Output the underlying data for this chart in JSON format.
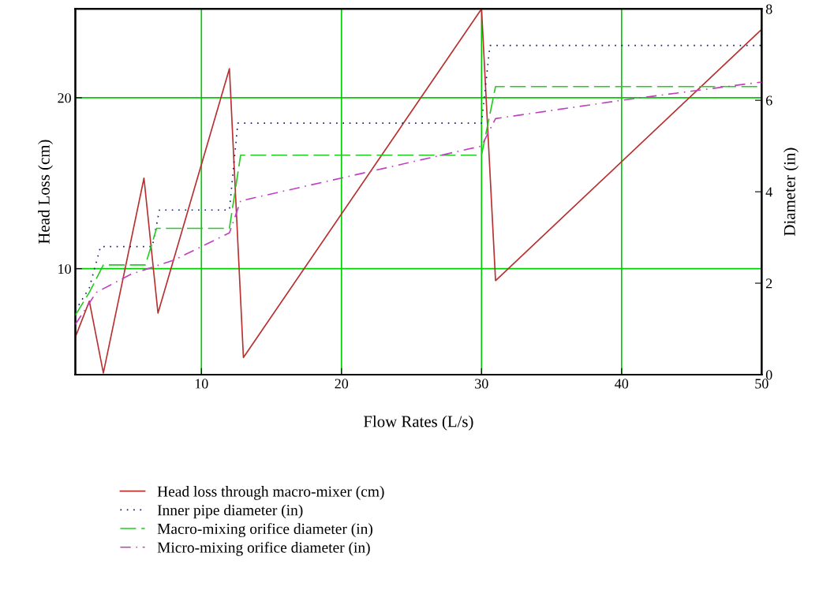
{
  "chart_data": {
    "type": "line",
    "xlabel": "Flow Rates (L/s)",
    "ylabel": "Head Loss (cm)",
    "y2label": "Diameter (in)",
    "xlim": [
      1,
      50
    ],
    "xticks": [
      10,
      20,
      30,
      40,
      50
    ],
    "ylim": [
      3.8,
      25.2
    ],
    "yticks": [
      10,
      20
    ],
    "y2lim": [
      0,
      8
    ],
    "y2ticks": [
      0,
      2,
      4,
      6,
      8
    ],
    "grid": true,
    "legend": "bottom left",
    "marker": "none",
    "series": [
      {
        "name": "Head loss through macro-mixer (cm)",
        "color": "#b83030",
        "line_style": "solid",
        "x": [
          1,
          2,
          3,
          5.9,
          6.9,
          12,
          13,
          30,
          31,
          50
        ],
        "values": [
          6.0,
          8.1,
          3.9,
          15.3,
          7.4,
          21.7,
          4.8,
          25.2,
          9.3,
          24.0
        ]
      },
      {
        "name": "Inner pipe diameter (in)",
        "color": "#1a1a6e",
        "line_style": "dotted",
        "axis": "y2",
        "x": [
          1,
          2,
          2.8,
          6.5,
          7,
          12,
          12.6,
          30,
          30.6,
          50
        ],
        "values": [
          1.4,
          1.9,
          2.8,
          2.8,
          3.6,
          3.6,
          5.5,
          5.5,
          7.2,
          7.2
        ]
      },
      {
        "name": "Macro-mixing orifice diameter (in)",
        "color": "#22cc22",
        "line_style": "dashed",
        "axis": "y2",
        "x": [
          1,
          2,
          3,
          6,
          6.8,
          12,
          12.8,
          30,
          31,
          50
        ],
        "values": [
          1.3,
          1.8,
          2.4,
          2.4,
          3.2,
          3.2,
          4.8,
          4.8,
          6.3,
          6.3
        ]
      },
      {
        "name": "Micro-mixing orifice diameter (in)",
        "color": "#c040c0",
        "line_style": "dashdot",
        "axis": "y2",
        "x": [
          1,
          2.5,
          5,
          8,
          12,
          12.8,
          20,
          30,
          31,
          40,
          50
        ],
        "values": [
          1.1,
          1.8,
          2.2,
          2.5,
          3.1,
          3.8,
          4.3,
          5.0,
          5.6,
          6.0,
          6.4
        ]
      }
    ]
  }
}
